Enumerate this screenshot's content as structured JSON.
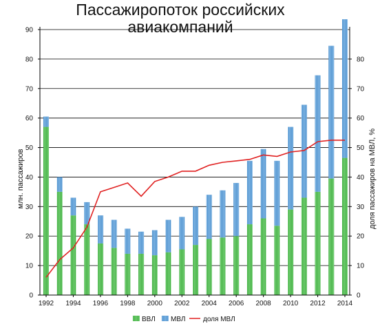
{
  "chart_data": {
    "type": "bar",
    "title_lines": [
      "Пассажиропоток российских",
      "авиакомпаний"
    ],
    "ylabel_left": "млн. пассажиров",
    "ylabel_right": "доля пассажиров на МВЛ, %",
    "ylim_left": [
      0,
      90
    ],
    "ylim_right": [
      0,
      90
    ],
    "yticks_left": [
      0,
      10,
      20,
      30,
      40,
      50,
      60,
      70,
      80,
      90
    ],
    "yticks_right": [
      0,
      10,
      20,
      30,
      40,
      50,
      60,
      70,
      80
    ],
    "x_tick_labels": [
      "1992",
      "1994",
      "1996",
      "1998",
      "2000",
      "2002",
      "2004",
      "2006",
      "2008",
      "2010",
      "2012",
      "2014"
    ],
    "categories": [
      1992,
      1993,
      1994,
      1995,
      1996,
      1997,
      1998,
      1999,
      2000,
      2001,
      2002,
      2003,
      2004,
      2005,
      2006,
      2007,
      2008,
      2009,
      2010,
      2011,
      2012,
      2013,
      2014
    ],
    "stacked": true,
    "grid": true,
    "legend_position": "bottom",
    "series": [
      {
        "name": "ВВЛ",
        "kind": "bar",
        "color": "#3dad3d",
        "values": [
          57,
          35,
          27,
          24,
          17.5,
          16,
          14,
          14,
          13.5,
          14.5,
          15.5,
          17,
          19,
          19.5,
          20,
          24,
          26,
          23.5,
          29,
          33,
          35,
          39.5,
          46.5
        ]
      },
      {
        "name": "МВЛ",
        "kind": "bar",
        "color": "#4a8fcc",
        "values": [
          3.5,
          5,
          6,
          7.5,
          9.5,
          9.5,
          8.5,
          7.5,
          8.5,
          11,
          11,
          13,
          15,
          16,
          18,
          21.5,
          23.5,
          22,
          28,
          31.5,
          39.5,
          45,
          47
        ]
      },
      {
        "name": "доля МВЛ",
        "kind": "line",
        "axis": "right",
        "color": "#e02020",
        "values": [
          6,
          12,
          16,
          23,
          35,
          36.5,
          38,
          33.5,
          38.5,
          40,
          42,
          42,
          44,
          45,
          45.5,
          46,
          47.5,
          47,
          48.5,
          49,
          52,
          52.5,
          52.5
        ]
      }
    ]
  }
}
